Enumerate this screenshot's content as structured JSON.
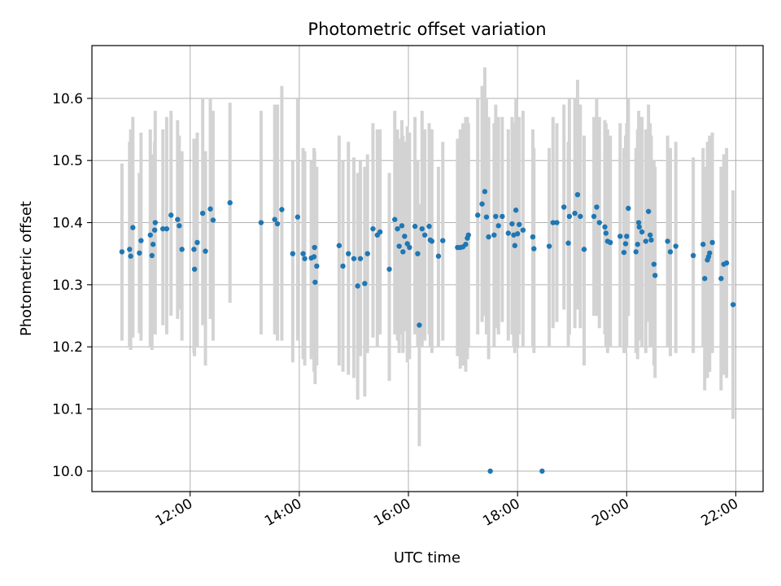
{
  "chart_data": {
    "type": "scatter",
    "title": "Photometric offset variation",
    "xlabel": "UTC time",
    "ylabel": "Photometric offset",
    "x_unit": "hours (UTC)",
    "xlim": [
      10.2,
      22.5
    ],
    "ylim": [
      9.967,
      10.685
    ],
    "x_ticks": [
      {
        "value": 12,
        "label": "12:00"
      },
      {
        "value": 14,
        "label": "14:00"
      },
      {
        "value": 16,
        "label": "16:00"
      },
      {
        "value": 18,
        "label": "18:00"
      },
      {
        "value": 20,
        "label": "20:00"
      },
      {
        "value": 22,
        "label": "22:00"
      }
    ],
    "y_ticks": [
      {
        "value": 10.0,
        "label": "10.0"
      },
      {
        "value": 10.1,
        "label": "10.1"
      },
      {
        "value": 10.2,
        "label": "10.2"
      },
      {
        "value": 10.3,
        "label": "10.3"
      },
      {
        "value": 10.4,
        "label": "10.4"
      },
      {
        "value": 10.5,
        "label": "10.5"
      },
      {
        "value": 10.6,
        "label": "10.6"
      }
    ],
    "grid": true,
    "legend": "none",
    "colors": {
      "point": "#1f77b4",
      "errorbar": "#d3d3d3",
      "grid": "#b0b0b0"
    },
    "series": [
      {
        "points": [
          [
            10.75,
            10.353,
            10.495,
            10.21
          ],
          [
            10.89,
            10.357,
            10.53,
            10.2
          ],
          [
            10.91,
            10.346,
            10.55,
            10.195
          ],
          [
            10.95,
            10.392,
            10.57,
            10.215
          ],
          [
            11.07,
            10.351,
            10.48,
            10.222
          ],
          [
            11.1,
            10.371,
            10.545,
            10.21
          ],
          [
            11.27,
            10.38,
            10.55,
            10.2
          ],
          [
            11.3,
            10.347,
            10.5,
            10.195
          ],
          [
            11.32,
            10.365,
            10.51,
            10.22
          ],
          [
            11.35,
            10.388,
            10.53,
            10.24
          ],
          [
            11.36,
            10.4,
            10.58,
            10.22
          ],
          [
            11.5,
            10.39,
            10.55,
            10.235
          ],
          [
            11.57,
            10.39,
            10.57,
            10.22
          ],
          [
            11.65,
            10.412,
            10.58,
            10.25
          ],
          [
            11.77,
            10.405,
            10.565,
            10.245
          ],
          [
            11.8,
            10.395,
            10.54,
            10.26
          ],
          [
            11.85,
            10.357,
            10.515,
            10.21
          ],
          [
            12.07,
            10.357,
            10.535,
            10.19
          ],
          [
            12.08,
            10.325,
            10.48,
            10.185
          ],
          [
            12.13,
            10.368,
            10.545,
            10.2
          ],
          [
            12.23,
            10.415,
            10.6,
            10.235
          ],
          [
            12.28,
            10.354,
            10.515,
            10.17
          ],
          [
            12.37,
            10.422,
            10.6,
            10.245
          ],
          [
            12.42,
            10.404,
            10.58,
            10.21
          ],
          [
            12.73,
            10.432,
            10.593,
            10.271
          ],
          [
            13.3,
            10.4,
            10.58,
            10.22
          ],
          [
            13.55,
            10.405,
            10.59,
            10.22
          ],
          [
            13.6,
            10.398,
            10.59,
            10.21
          ],
          [
            13.68,
            10.421,
            10.62,
            10.21
          ],
          [
            13.88,
            10.35,
            10.5,
            10.175
          ],
          [
            13.97,
            10.409,
            10.6,
            10.21
          ],
          [
            14.07,
            10.35,
            10.52,
            10.18
          ],
          [
            14.1,
            10.342,
            10.515,
            10.17
          ],
          [
            14.22,
            10.343,
            10.5,
            10.18
          ],
          [
            14.27,
            10.345,
            10.52,
            10.16
          ],
          [
            14.28,
            10.36,
            10.515,
            10.2
          ],
          [
            14.29,
            10.304,
            10.47,
            10.14
          ],
          [
            14.32,
            10.33,
            10.49,
            10.17
          ],
          [
            14.73,
            10.363,
            10.54,
            10.17
          ],
          [
            14.8,
            10.33,
            10.5,
            10.16
          ],
          [
            14.9,
            10.35,
            10.53,
            10.155
          ],
          [
            15.0,
            10.342,
            10.505,
            10.15
          ],
          [
            15.07,
            10.298,
            10.48,
            10.115
          ],
          [
            15.12,
            10.342,
            10.5,
            10.185
          ],
          [
            15.2,
            10.302,
            10.49,
            10.12
          ],
          [
            15.25,
            10.35,
            10.51,
            10.19
          ],
          [
            15.35,
            10.39,
            10.56,
            10.215
          ],
          [
            15.43,
            10.38,
            10.55,
            10.2
          ],
          [
            15.48,
            10.385,
            10.55,
            10.22
          ],
          [
            15.65,
            10.325,
            10.48,
            10.145
          ],
          [
            15.75,
            10.405,
            10.58,
            10.22
          ],
          [
            15.8,
            10.39,
            10.55,
            10.21
          ],
          [
            15.83,
            10.362,
            10.535,
            10.19
          ],
          [
            15.88,
            10.395,
            10.565,
            10.22
          ],
          [
            15.9,
            10.353,
            10.54,
            10.19
          ],
          [
            15.93,
            10.378,
            10.53,
            10.225
          ],
          [
            15.98,
            10.366,
            10.555,
            10.175
          ],
          [
            16.02,
            10.36,
            10.545,
            10.18
          ],
          [
            16.12,
            10.394,
            10.57,
            10.22
          ],
          [
            16.17,
            10.35,
            10.5,
            10.2
          ],
          [
            16.2,
            10.235,
            10.43,
            10.04
          ],
          [
            16.25,
            10.39,
            10.58,
            10.2
          ],
          [
            16.3,
            10.38,
            10.55,
            10.21
          ],
          [
            16.38,
            10.394,
            10.56,
            10.22
          ],
          [
            16.4,
            10.372,
            10.54,
            10.2
          ],
          [
            16.43,
            10.37,
            10.55,
            10.19
          ],
          [
            16.55,
            10.346,
            10.49,
            10.2
          ],
          [
            16.63,
            10.371,
            10.53,
            10.21
          ],
          [
            16.9,
            10.36,
            10.535,
            10.185
          ],
          [
            16.95,
            10.36,
            10.55,
            10.165
          ],
          [
            17.0,
            10.361,
            10.56,
            10.17
          ],
          [
            17.05,
            10.365,
            10.57,
            10.16
          ],
          [
            17.08,
            10.375,
            10.57,
            10.18
          ],
          [
            17.1,
            10.38,
            10.56,
            10.2
          ],
          [
            17.27,
            10.412,
            10.6,
            10.22
          ],
          [
            17.35,
            10.43,
            10.62,
            10.24
          ],
          [
            17.4,
            10.45,
            10.65,
            10.25
          ],
          [
            17.43,
            10.409,
            10.6,
            10.22
          ],
          [
            17.47,
            10.377,
            10.57,
            10.18
          ],
          [
            17.5,
            10.0,
            10.0,
            10.0
          ],
          [
            17.57,
            10.38,
            10.56,
            10.2
          ],
          [
            17.6,
            10.41,
            10.59,
            10.23
          ],
          [
            17.65,
            10.395,
            10.57,
            10.22
          ],
          [
            17.72,
            10.41,
            10.57,
            10.24
          ],
          [
            17.83,
            10.383,
            10.55,
            10.21
          ],
          [
            17.9,
            10.398,
            10.57,
            10.22
          ],
          [
            17.93,
            10.38,
            10.56,
            10.2
          ],
          [
            17.95,
            10.363,
            10.54,
            10.19
          ],
          [
            17.97,
            10.42,
            10.6,
            10.24
          ],
          [
            18.0,
            10.382,
            10.56,
            10.2
          ],
          [
            18.03,
            10.397,
            10.57,
            10.22
          ],
          [
            18.1,
            10.388,
            10.58,
            10.2
          ],
          [
            18.28,
            10.377,
            10.55,
            10.2
          ],
          [
            18.3,
            10.358,
            10.52,
            10.19
          ],
          [
            18.45,
            10.0,
            10.0,
            10.0
          ],
          [
            18.58,
            10.362,
            10.52,
            10.2
          ],
          [
            18.65,
            10.4,
            10.57,
            10.23
          ],
          [
            18.72,
            10.4,
            10.56,
            10.24
          ],
          [
            18.85,
            10.425,
            10.59,
            10.26
          ],
          [
            18.93,
            10.367,
            10.53,
            10.2
          ],
          [
            18.95,
            10.41,
            10.6,
            10.22
          ],
          [
            19.05,
            10.415,
            10.6,
            10.23
          ],
          [
            19.1,
            10.445,
            10.63,
            10.26
          ],
          [
            19.15,
            10.41,
            10.59,
            10.23
          ],
          [
            19.22,
            10.357,
            10.54,
            10.17
          ],
          [
            19.4,
            10.41,
            10.57,
            10.25
          ],
          [
            19.45,
            10.425,
            10.6,
            10.25
          ],
          [
            19.5,
            10.4,
            10.57,
            10.23
          ],
          [
            19.6,
            10.393,
            10.565,
            10.22
          ],
          [
            19.62,
            10.383,
            10.56,
            10.2
          ],
          [
            19.65,
            10.37,
            10.55,
            10.19
          ],
          [
            19.7,
            10.368,
            10.54,
            10.2
          ],
          [
            19.88,
            10.378,
            10.56,
            10.2
          ],
          [
            19.95,
            10.352,
            10.52,
            10.19
          ],
          [
            19.98,
            10.366,
            10.54,
            10.19
          ],
          [
            20.0,
            10.378,
            10.56,
            10.2
          ],
          [
            20.03,
            10.423,
            10.6,
            10.25
          ],
          [
            20.17,
            10.353,
            10.52,
            10.19
          ],
          [
            20.2,
            10.365,
            10.55,
            10.18
          ],
          [
            20.22,
            10.4,
            10.58,
            10.22
          ],
          [
            20.23,
            10.393,
            10.57,
            10.21
          ],
          [
            20.28,
            10.385,
            10.57,
            10.2
          ],
          [
            20.35,
            10.37,
            10.55,
            10.19
          ],
          [
            20.4,
            10.418,
            10.59,
            10.24
          ],
          [
            20.43,
            10.38,
            10.56,
            10.2
          ],
          [
            20.45,
            10.372,
            10.54,
            10.2
          ],
          [
            20.5,
            10.333,
            10.5,
            10.17
          ],
          [
            20.52,
            10.315,
            10.49,
            10.15
          ],
          [
            20.75,
            10.37,
            10.54,
            10.2
          ],
          [
            20.8,
            10.353,
            10.52,
            10.185
          ],
          [
            20.9,
            10.362,
            10.53,
            10.19
          ],
          [
            21.22,
            10.347,
            10.505,
            10.19
          ],
          [
            21.4,
            10.365,
            10.52,
            10.2
          ],
          [
            21.43,
            10.31,
            10.49,
            10.13
          ],
          [
            21.48,
            10.34,
            10.53,
            10.15
          ],
          [
            21.5,
            10.345,
            10.53,
            10.16
          ],
          [
            21.52,
            10.351,
            10.54,
            10.16
          ],
          [
            21.57,
            10.368,
            10.545,
            10.19
          ],
          [
            21.73,
            10.31,
            10.49,
            10.13
          ],
          [
            21.78,
            10.333,
            10.51,
            10.155
          ],
          [
            21.83,
            10.335,
            10.52,
            10.15
          ],
          [
            21.95,
            10.268,
            10.452,
            10.084
          ]
        ]
      }
    ]
  }
}
